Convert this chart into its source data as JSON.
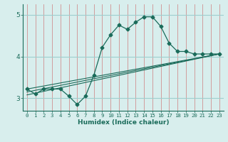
{
  "xlabel": "Humidex (Indice chaleur)",
  "bg_color": "#d8eeed",
  "vgrid_color": "#d09090",
  "hgrid_color": "#9ecece",
  "line_color": "#1a6b5a",
  "spine_color": "#1a6b5a",
  "xlim": [
    -0.5,
    23.5
  ],
  "ylim": [
    2.7,
    5.25
  ],
  "yticks": [
    3,
    4,
    5
  ],
  "xticks": [
    0,
    1,
    2,
    3,
    4,
    5,
    6,
    7,
    8,
    9,
    10,
    11,
    12,
    13,
    14,
    15,
    16,
    17,
    18,
    19,
    20,
    21,
    22,
    23
  ],
  "main_series_x": [
    0,
    1,
    2,
    3,
    4,
    5,
    6,
    7,
    8,
    9,
    10,
    11,
    12,
    13,
    14,
    15,
    16,
    17,
    18,
    19,
    20,
    21,
    22,
    23
  ],
  "main_series_y": [
    3.22,
    3.1,
    3.22,
    3.22,
    3.22,
    3.05,
    2.85,
    3.05,
    3.55,
    4.22,
    4.52,
    4.75,
    4.65,
    4.82,
    4.95,
    4.95,
    4.72,
    4.32,
    4.12,
    4.12,
    4.06,
    4.06,
    4.06,
    4.06
  ],
  "trend_lines": [
    {
      "x": [
        0,
        23
      ],
      "y": [
        3.22,
        4.06
      ]
    },
    {
      "x": [
        0,
        23
      ],
      "y": [
        3.15,
        4.06
      ]
    },
    {
      "x": [
        0,
        23
      ],
      "y": [
        3.08,
        4.06
      ]
    }
  ]
}
